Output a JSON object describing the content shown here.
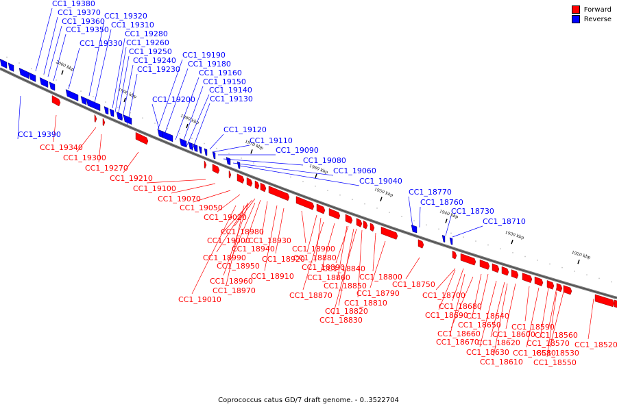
{
  "legend": {
    "forward_label": "Forward",
    "reverse_label": "Reverse",
    "forward_color": "#ff0000",
    "reverse_color": "#0000ff"
  },
  "caption": "Coprococcus catus GD/7 draft genome. - 0..3522704",
  "ticks": [
    "2000 kbp",
    "1990 kbp",
    "1980 kbp",
    "1970 kbp",
    "1960 kbp",
    "1950 kbp",
    "1940 kbp",
    "1930 kbp",
    "1920 kbp"
  ],
  "reverse_labels": [
    "CC1_19380",
    "CC1_19370",
    "CC1_19360",
    "CC1_19350",
    "CC1_19330",
    "CC1_19320",
    "CC1_19310",
    "CC1_19280",
    "CC1_19260",
    "CC1_19250",
    "CC1_19240",
    "CC1_19230",
    "CC1_19190",
    "CC1_19180",
    "CC1_19160",
    "CC1_19150",
    "CC1_19140",
    "CC1_19130",
    "CC1_19200",
    "CC1_19390",
    "CC1_19120",
    "CC1_19110",
    "CC1_19090",
    "CC1_19080",
    "CC1_19060",
    "CC1_19040",
    "CC1_18770",
    "CC1_18760",
    "CC1_18730",
    "CC1_18710"
  ],
  "forward_labels": [
    "CC1_19340",
    "CC1_19300",
    "CC1_19270",
    "CC1_19210",
    "CC1_19100",
    "CC1_19070",
    "CC1_19050",
    "CC1_19020",
    "CC1_18980",
    "CC1_19000",
    "CC1_18940",
    "CC1_18930",
    "CC1_18990",
    "CC1_18920",
    "CC1_18900",
    "CC1_18950",
    "CC1_18910",
    "CC1_18890",
    "CC1_18880",
    "CC1_18960",
    "CC1_18970",
    "CC1_19010",
    "CC1_18860",
    "CC1_18840",
    "CC1_18850",
    "CC1_18800",
    "CC1_18870",
    "CC1_18810",
    "CC1_18790",
    "CC1_18820",
    "CC1_18830",
    "CC1_18750",
    "CC1_18700",
    "CC1_18680",
    "CC1_18690",
    "CC1_18640",
    "CC1_18650",
    "CC1_18660",
    "CC1_18670",
    "CC1_18600",
    "CC1_18590",
    "CC1_18620",
    "CC1_18630",
    "CC1_18610",
    "CC1_18560",
    "CC1_18570",
    "CC1_18580",
    "CC1_18530",
    "CC1_18550",
    "CC1_18520"
  ]
}
